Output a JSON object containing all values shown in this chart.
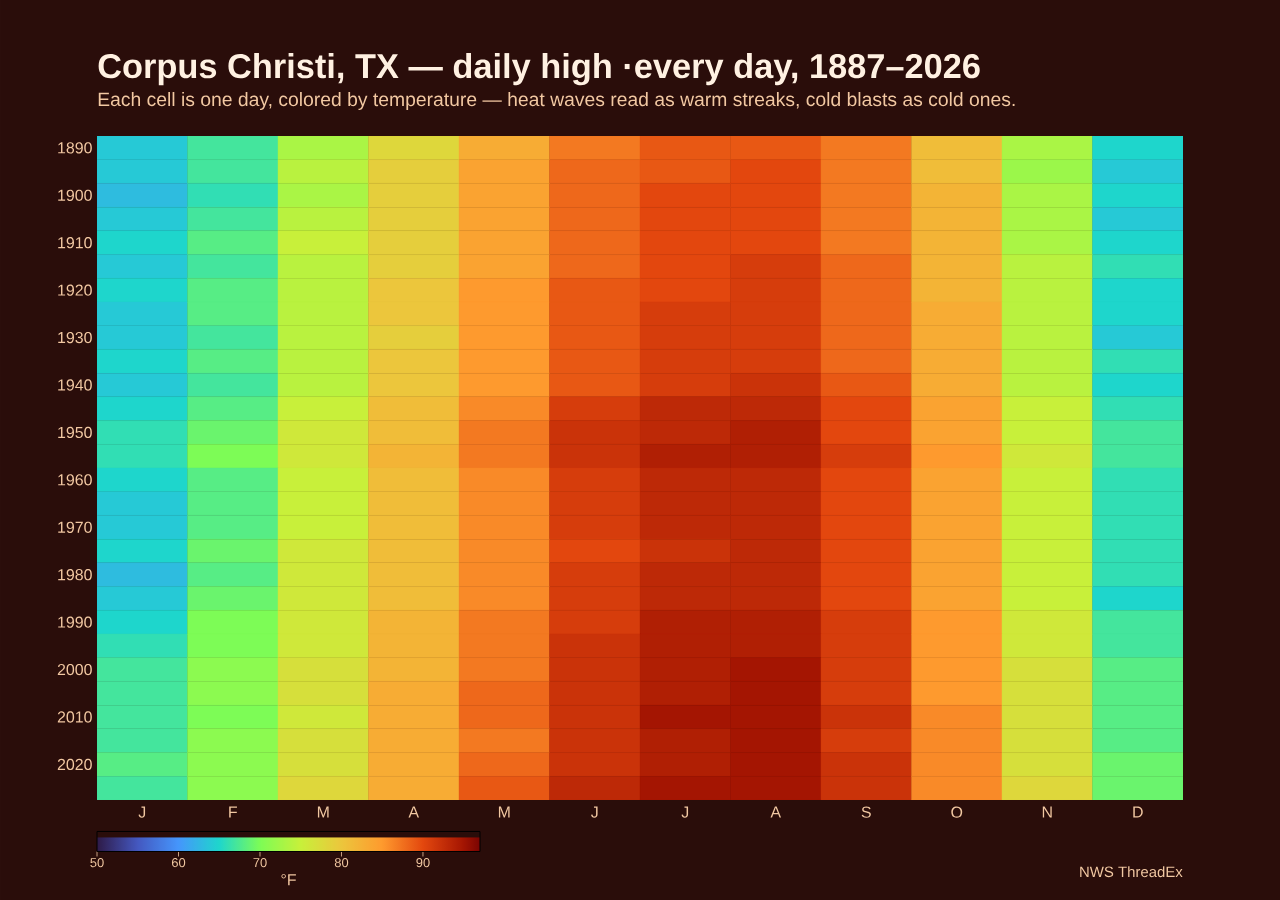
{
  "chart_data": {
    "type": "heatmap",
    "title": "Corpus Christi, TX — daily high ·every day, 1887–2026",
    "subtitle": "Each cell is one day, colored by temperature — heat waves read as warm streaks, cold blasts as cold ones.",
    "categories": [
      "J",
      "F",
      "M",
      "A",
      "M",
      "J",
      "J",
      "A",
      "S",
      "O",
      "N",
      "D"
    ],
    "y_categories": [
      "1890",
      null,
      "1900",
      null,
      "1910",
      null,
      "1920",
      null,
      "1930",
      null,
      "1940",
      null,
      "1950",
      null,
      "1960",
      null,
      "1970",
      null,
      "1980",
      null,
      "1990",
      null,
      "2000",
      null,
      "2010",
      null,
      "2020",
      null
    ],
    "cells": [
      [
        64,
        67,
        73,
        78,
        83,
        87,
        89,
        89,
        87,
        81,
        73,
        65
      ],
      [
        64,
        67,
        74,
        79,
        84,
        88,
        89,
        90,
        87,
        81,
        72,
        64
      ],
      [
        63,
        66,
        73,
        79,
        84,
        88,
        90,
        90,
        87,
        82,
        73,
        65
      ],
      [
        64,
        67,
        74,
        79,
        84,
        88,
        90,
        90,
        87,
        82,
        73,
        64
      ],
      [
        65,
        68,
        75,
        79,
        84,
        88,
        90,
        90,
        87,
        82,
        73,
        65
      ],
      [
        64,
        67,
        74,
        79,
        84,
        88,
        90,
        91,
        88,
        82,
        74,
        66
      ],
      [
        65,
        68,
        74,
        80,
        85,
        89,
        90,
        91,
        88,
        82,
        74,
        65
      ],
      [
        64,
        68,
        74,
        80,
        85,
        89,
        91,
        91,
        88,
        83,
        74,
        65
      ],
      [
        64,
        67,
        74,
        79,
        85,
        89,
        91,
        91,
        88,
        83,
        74,
        64
      ],
      [
        65,
        68,
        74,
        80,
        85,
        89,
        91,
        91,
        88,
        83,
        74,
        66
      ],
      [
        64,
        67,
        74,
        80,
        85,
        89,
        91,
        92,
        89,
        83,
        74,
        65
      ],
      [
        65,
        68,
        75,
        81,
        86,
        91,
        93,
        93,
        90,
        84,
        75,
        66
      ],
      [
        66,
        69,
        76,
        81,
        87,
        92,
        93,
        94,
        90,
        84,
        75,
        67
      ],
      [
        66,
        70,
        76,
        82,
        87,
        92,
        94,
        94,
        91,
        85,
        76,
        67
      ],
      [
        65,
        68,
        75,
        81,
        86,
        91,
        93,
        93,
        90,
        84,
        75,
        66
      ],
      [
        64,
        68,
        75,
        81,
        86,
        91,
        93,
        93,
        90,
        84,
        75,
        66
      ],
      [
        64,
        68,
        75,
        81,
        86,
        91,
        93,
        93,
        90,
        84,
        75,
        66
      ],
      [
        65,
        69,
        76,
        81,
        86,
        90,
        92,
        93,
        90,
        84,
        75,
        66
      ],
      [
        63,
        68,
        76,
        81,
        86,
        91,
        93,
        93,
        90,
        84,
        75,
        66
      ],
      [
        64,
        69,
        76,
        81,
        86,
        91,
        93,
        93,
        90,
        84,
        75,
        65
      ],
      [
        65,
        70,
        76,
        82,
        87,
        91,
        94,
        94,
        91,
        85,
        76,
        67
      ],
      [
        66,
        70,
        76,
        82,
        87,
        92,
        94,
        94,
        91,
        85,
        76,
        67
      ],
      [
        67,
        71,
        77,
        82,
        87,
        92,
        94,
        95,
        91,
        85,
        77,
        68
      ],
      [
        67,
        71,
        77,
        83,
        88,
        92,
        94,
        95,
        91,
        85,
        77,
        68
      ],
      [
        67,
        70,
        76,
        83,
        88,
        92,
        95,
        95,
        92,
        86,
        77,
        68
      ],
      [
        67,
        71,
        77,
        83,
        87,
        92,
        94,
        95,
        91,
        86,
        77,
        68
      ],
      [
        68,
        71,
        77,
        83,
        88,
        92,
        94,
        95,
        92,
        86,
        77,
        69
      ],
      [
        67,
        71,
        78,
        83,
        89,
        93,
        95,
        95,
        92,
        86,
        78,
        69
      ]
    ],
    "clim": [
      50,
      97
    ],
    "cticks": [
      50,
      60,
      70,
      80,
      90
    ],
    "clabel": "°F",
    "annotations": [
      "NWS ThreadEx"
    ]
  }
}
